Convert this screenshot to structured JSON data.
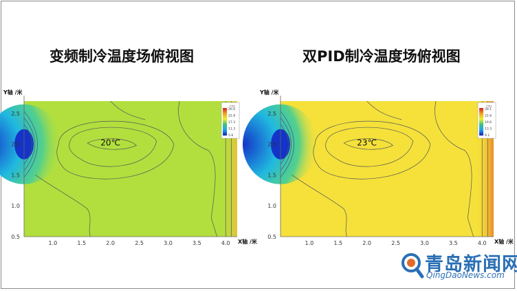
{
  "chart_data": [
    {
      "type": "heatmap",
      "title": "变频制冷温度场俯视图",
      "xlabel": "X轴 /米",
      "ylabel": "Y轴 /米",
      "xlim": [
        0.5,
        4.2
      ],
      "ylim": [
        0.5,
        2.7
      ],
      "xticks": [
        "1.0",
        "1.5",
        "2.0",
        "2.5",
        "3.0",
        "3.5",
        "4.0"
      ],
      "yticks": [
        "0.5",
        "1.0",
        "1.5",
        "2.0",
        "2.5"
      ],
      "annotation": "20℃",
      "colorbar": {
        "unit": "(℃)",
        "labels": [
          "26.0",
          "22.8",
          "17.3",
          "11.3",
          "5.6"
        ]
      },
      "colors": {
        "field": "#b2df3e",
        "cold": "#1433c8",
        "edge": "#e8c13a"
      }
    },
    {
      "type": "heatmap",
      "title": "双PID制冷温度场俯视图",
      "xlabel": "X轴 /米",
      "ylabel": "Y轴 /米",
      "xlim": [
        0.5,
        4.2
      ],
      "ylim": [
        0.5,
        2.7
      ],
      "xticks": [
        "1.0",
        "1.5",
        "2.0",
        "2.5",
        "3.0",
        "3.5",
        "4.0"
      ],
      "yticks": [
        "0.5",
        "1.0",
        "1.5",
        "2.0",
        "2.5"
      ],
      "annotation": "23℃",
      "colorbar": {
        "unit": "(℃)",
        "labels": [
          "30.1",
          "22.6",
          "19.6",
          "13.3",
          "9.1"
        ]
      },
      "colors": {
        "field": "#f5e13a",
        "cold": "#1433c8",
        "edge": "#e88a2a"
      }
    }
  ],
  "watermark": {
    "main": "青岛新闻网",
    "sub": "QingDaoNews.com"
  }
}
